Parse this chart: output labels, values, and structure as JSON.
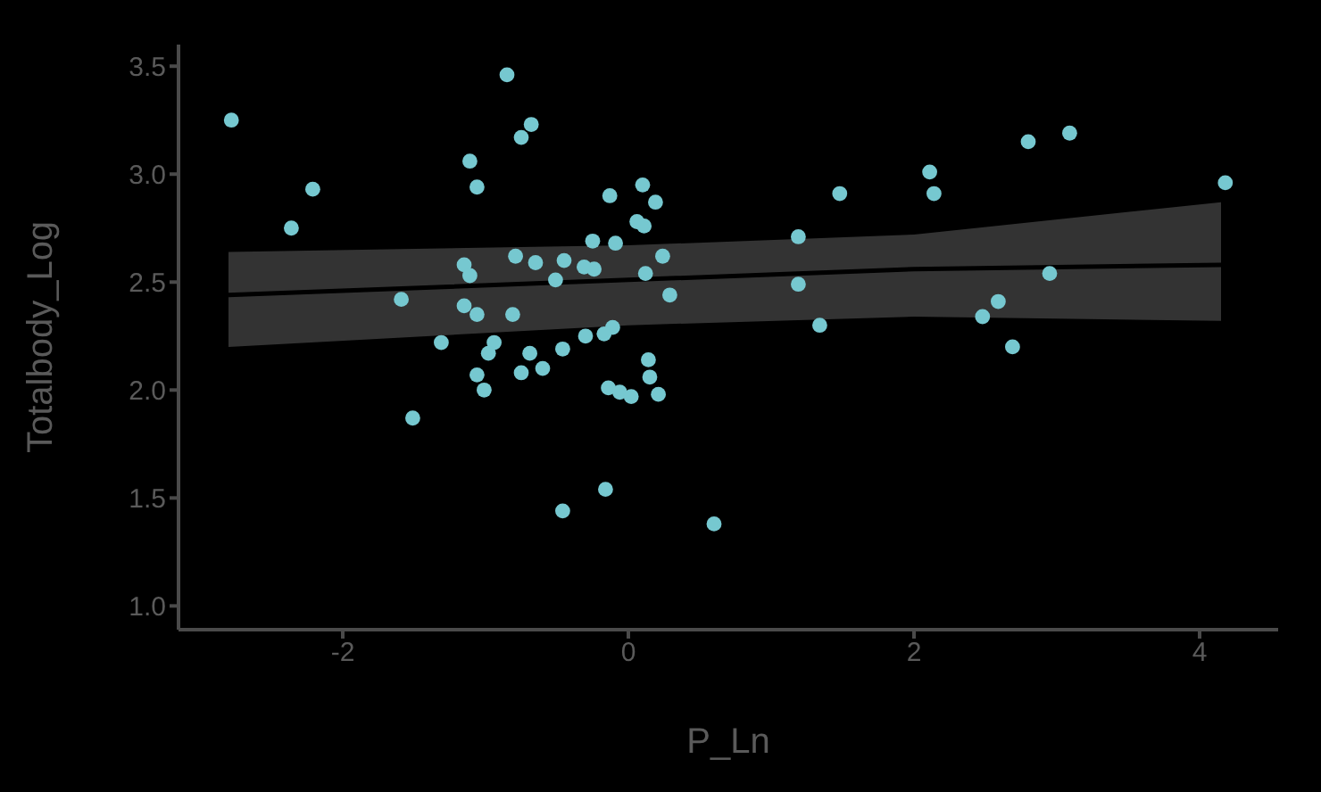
{
  "chart_data": {
    "type": "scatter",
    "xlabel": "P_Ln",
    "ylabel": "Totalbody_Log",
    "xlim": [
      -3.15,
      4.55
    ],
    "ylim": [
      0.89,
      3.6
    ],
    "xticks": [
      -2,
      0,
      2,
      4
    ],
    "yticks": [
      {
        "value": 1,
        "label": "1.0"
      },
      1.5,
      {
        "value": 2,
        "label": "2.0"
      },
      2.5,
      {
        "value": 3,
        "label": "3.0"
      },
      3.5
    ],
    "grid": false,
    "legend": false,
    "series": [
      {
        "marker": "circle",
        "color": "#76c8d0",
        "x": [
          -2.78,
          -2.21,
          -2.36,
          -0.85,
          -0.68,
          -0.75,
          -1.11,
          -1.06,
          -1.15,
          -1.11,
          -0.79,
          -1.59,
          -1.15,
          -1.06,
          -0.81,
          -1.31,
          -0.94,
          -0.98,
          -0.69,
          -1.06,
          -0.75,
          -1.01,
          -1.51,
          -0.13,
          0.1,
          0.19,
          0.06,
          0.11,
          -0.25,
          -0.09,
          -0.65,
          -0.45,
          -0.31,
          -0.24,
          -0.51,
          0.24,
          0.12,
          0.29,
          -0.11,
          -0.17,
          -0.3,
          -0.46,
          -0.6,
          0.14,
          0.15,
          0.21,
          -0.14,
          -0.06,
          0.02,
          -0.16,
          -0.46,
          0.6,
          1.19,
          1.48,
          2.11,
          2.14,
          2.8,
          3.09,
          4.18,
          1.19,
          2.95,
          1.34,
          2.48,
          2.59,
          2.69
        ],
        "values": [
          3.25,
          2.93,
          2.75,
          3.46,
          3.23,
          3.17,
          3.06,
          2.94,
          2.58,
          2.53,
          2.62,
          2.42,
          2.39,
          2.35,
          2.35,
          2.22,
          2.22,
          2.17,
          2.17,
          2.07,
          2.08,
          2.0,
          1.87,
          2.9,
          2.95,
          2.87,
          2.78,
          2.76,
          2.69,
          2.68,
          2.59,
          2.6,
          2.57,
          2.56,
          2.51,
          2.62,
          2.54,
          2.44,
          2.29,
          2.26,
          2.25,
          2.19,
          2.1,
          2.14,
          2.06,
          1.98,
          2.01,
          1.99,
          1.97,
          1.54,
          1.44,
          1.38,
          2.71,
          2.91,
          3.01,
          2.91,
          3.15,
          3.19,
          2.96,
          2.49,
          2.54,
          2.3,
          2.34,
          2.41,
          2.2
        ]
      },
      {
        "type": "line",
        "marker": "none",
        "color": "#000000",
        "x": [
          -2.8,
          0,
          2,
          4.15
        ],
        "values": [
          2.44,
          2.51,
          2.56,
          2.58
        ],
        "lower": [
          2.2,
          2.3,
          2.34,
          2.32
        ],
        "upper": [
          2.64,
          2.67,
          2.72,
          2.87
        ]
      }
    ]
  }
}
